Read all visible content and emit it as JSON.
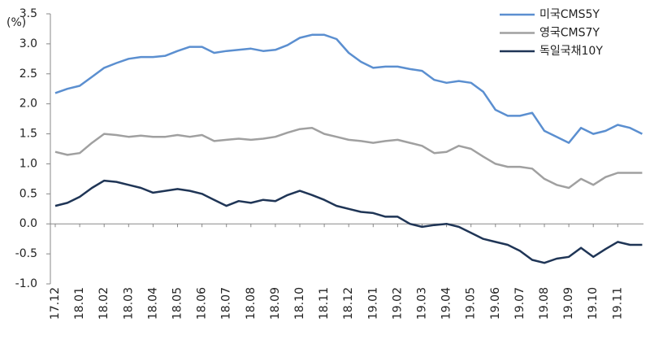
{
  "chart_data": {
    "type": "line",
    "y_unit_label": "(%)",
    "categories": [
      "17.12",
      null,
      "18.01",
      null,
      "18.02",
      null,
      "18.03",
      null,
      "18.04",
      null,
      "18.05",
      null,
      "18.06",
      null,
      "18.07",
      null,
      "18.08",
      null,
      "18.09",
      null,
      "18.10",
      null,
      "18.11",
      null,
      "18.12",
      null,
      "19.01",
      null,
      "19.02",
      null,
      "19.03",
      null,
      "19.04",
      null,
      "19.05",
      null,
      "19.06",
      null,
      "19.07",
      null,
      "19.08",
      null,
      "19.09",
      null,
      "19.10",
      null,
      "19.11",
      null,
      null
    ],
    "series": [
      {
        "name": "미국CMS5Y",
        "color": "#5b8fd0",
        "values": [
          2.18,
          2.25,
          2.3,
          2.45,
          2.6,
          2.68,
          2.75,
          2.78,
          2.78,
          2.8,
          2.88,
          2.95,
          2.95,
          2.85,
          2.88,
          2.9,
          2.92,
          2.88,
          2.9,
          2.98,
          3.1,
          3.15,
          3.15,
          3.08,
          2.85,
          2.7,
          2.6,
          2.62,
          2.62,
          2.58,
          2.55,
          2.4,
          2.35,
          2.38,
          2.35,
          2.2,
          1.9,
          1.8,
          1.8,
          1.85,
          1.55,
          1.45,
          1.35,
          1.6,
          1.5,
          1.55,
          1.65,
          1.6,
          1.5
        ]
      },
      {
        "name": "영국CMS7Y",
        "color": "#a0a0a0",
        "values": [
          1.2,
          1.15,
          1.18,
          1.35,
          1.5,
          1.48,
          1.45,
          1.47,
          1.45,
          1.45,
          1.48,
          1.45,
          1.48,
          1.38,
          1.4,
          1.42,
          1.4,
          1.42,
          1.45,
          1.52,
          1.58,
          1.6,
          1.5,
          1.45,
          1.4,
          1.38,
          1.35,
          1.38,
          1.4,
          1.35,
          1.3,
          1.18,
          1.2,
          1.3,
          1.25,
          1.12,
          1.0,
          0.95,
          0.95,
          0.92,
          0.75,
          0.65,
          0.6,
          0.75,
          0.65,
          0.78,
          0.85,
          0.85,
          0.85
        ]
      },
      {
        "name": "독일국채10Y",
        "color": "#1f3556",
        "values": [
          0.3,
          0.35,
          0.45,
          0.6,
          0.72,
          0.7,
          0.65,
          0.6,
          0.52,
          0.55,
          0.58,
          0.55,
          0.5,
          0.4,
          0.3,
          0.38,
          0.35,
          0.4,
          0.38,
          0.48,
          0.55,
          0.48,
          0.4,
          0.3,
          0.25,
          0.2,
          0.18,
          0.12,
          0.12,
          0.0,
          -0.05,
          -0.02,
          0.0,
          -0.05,
          -0.15,
          -0.25,
          -0.3,
          -0.35,
          -0.45,
          -0.6,
          -0.65,
          -0.58,
          -0.55,
          -0.4,
          -0.55,
          -0.42,
          -0.3,
          -0.35,
          -0.35
        ]
      }
    ],
    "ylim": [
      -1,
      3.5
    ],
    "yticks": [
      3.5,
      {
        "value": 3,
        "label": "3.0"
      },
      2.5,
      {
        "value": 2,
        "label": "2.0"
      },
      1.5,
      {
        "value": 1,
        "label": "1.0"
      },
      0.5,
      {
        "value": 0,
        "label": "0.0"
      },
      -0.5,
      {
        "value": -1,
        "label": "-1.0"
      }
    ],
    "legend": "top-right"
  }
}
